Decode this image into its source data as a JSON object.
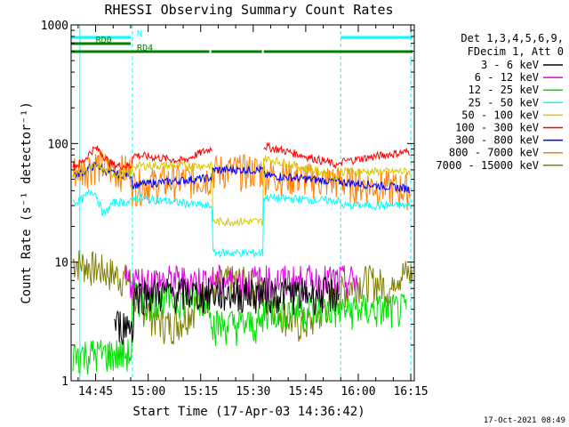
{
  "chart_data": {
    "type": "line",
    "title": "RHESSI Observing Summary Count Rates",
    "xlabel": "Start Time (17-Apr-03 14:36:42)",
    "ylabel": "Count Rate (s⁻¹ detector⁻¹)",
    "y_scale": "log",
    "ylim": [
      1,
      1000
    ],
    "y_ticks": [
      {
        "value": 1,
        "label": "1"
      },
      {
        "value": 10,
        "label": "10"
      },
      {
        "value": 100,
        "label": "100"
      },
      {
        "value": 1000,
        "label": "1000"
      }
    ],
    "x_ticks": [
      {
        "minute": 45,
        "label": "14:45"
      },
      {
        "minute": 60,
        "label": "15:00"
      },
      {
        "minute": 75,
        "label": "15:15"
      },
      {
        "minute": 90,
        "label": "15:30"
      },
      {
        "minute": 105,
        "label": "15:45"
      },
      {
        "minute": 120,
        "label": "16:00"
      },
      {
        "minute": 135,
        "label": "16:15"
      }
    ],
    "x_range_minutes_after_14_00": [
      38,
      136
    ],
    "legend_header": [
      "Det 1,3,4,5,6,9,",
      "FDecim 1, Att 0"
    ],
    "series": [
      {
        "name": "3 - 6 keV",
        "color": "#000000"
      },
      {
        "name": "6 - 12 keV",
        "color": "#e000e0"
      },
      {
        "name": "12 - 25 keV",
        "color": "#00e000"
      },
      {
        "name": "25 - 50 keV",
        "color": "#00ffff"
      },
      {
        "name": "50 - 100 keV",
        "color": "#d8c800"
      },
      {
        "name": "100 - 300 keV",
        "color": "#ff0000"
      },
      {
        "name": "300 - 800 keV",
        "color": "#0000ff"
      },
      {
        "name": "800 - 7000 keV",
        "color": "#ff8000"
      },
      {
        "name": "7000 - 15000 keV",
        "color": "#808000"
      }
    ],
    "annotations": {
      "flags": [
        {
          "label": "N",
          "color": "#00ffff",
          "spans": [
            [
              38,
              55.5
            ],
            [
              115,
              136
            ]
          ]
        },
        {
          "label": "RD0",
          "color": "#008000",
          "spans": [
            [
              38,
              55.5
            ]
          ]
        },
        {
          "label": "RD4",
          "color": "#008000",
          "spans": [
            [
              38,
              78
            ],
            [
              78,
              93
            ],
            [
              93,
              136
            ]
          ]
        }
      ],
      "night_boundaries_minutes": [
        55.5,
        115,
        135
      ]
    },
    "footer_timestamp": "17-Oct-2021 08:49"
  }
}
